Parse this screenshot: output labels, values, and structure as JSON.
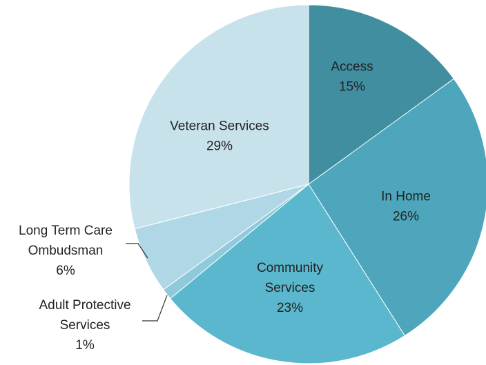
{
  "chart_data": {
    "type": "pie",
    "unit": "%",
    "slices": [
      {
        "label": "Access",
        "value": 15,
        "value_label": "15%",
        "color": "#418ea1"
      },
      {
        "label": "In Home",
        "value": 26,
        "value_label": "26%",
        "color": "#4ea6bc"
      },
      {
        "label": "Community Services",
        "label_lines": [
          "Community",
          "Services"
        ],
        "value": 23,
        "value_label": "23%",
        "color": "#5ab7cd"
      },
      {
        "label": "Adult Protective Services",
        "label_lines": [
          "Adult Protective",
          "Services"
        ],
        "value": 1,
        "value_label": "1%",
        "color": "#8ecadb"
      },
      {
        "label": "Long Term Care Ombudsman",
        "label_lines": [
          "Long Term Care",
          "Ombudsman"
        ],
        "value": 6,
        "value_label": "6%",
        "color": "#b0d7e5"
      },
      {
        "label": "Veteran Services",
        "value": 29,
        "value_label": "29%",
        "color": "#c8e2ec"
      }
    ]
  }
}
